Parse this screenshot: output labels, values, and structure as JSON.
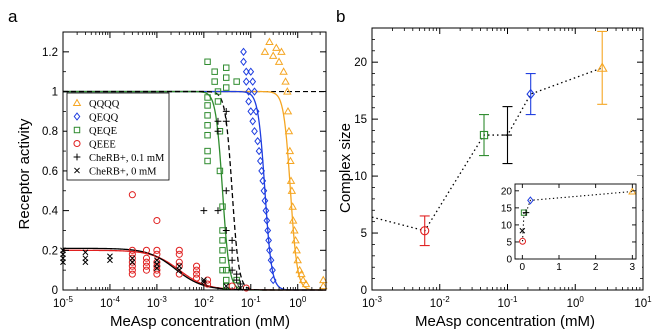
{
  "panels": {
    "a": {
      "letter": "a",
      "ylabel": "Receptor activity",
      "xlabel": "MeAsp concentration (mM)"
    },
    "b": {
      "letter": "b",
      "ylabel": "Complex size",
      "xlabel": "MeAsp concentration (mM)"
    }
  },
  "chart_data": [
    {
      "type": "scatter",
      "panel": "a",
      "xscale": "log",
      "xlim": [
        1e-05,
        4
      ],
      "ylim": [
        0,
        1.3
      ],
      "xticks": [
        1e-05,
        0.0001,
        0.001,
        0.01,
        0.1,
        1
      ],
      "xtick_labels": [
        {
          "base": "10",
          "exp": "-5"
        },
        {
          "base": "10",
          "exp": "-4"
        },
        {
          "base": "10",
          "exp": "-3"
        },
        {
          "base": "10",
          "exp": "-2"
        },
        {
          "base": "10",
          "exp": "-1"
        },
        {
          "base": "10",
          "exp": "0"
        }
      ],
      "yticks": [
        0,
        0.2,
        0.4,
        0.6,
        0.8,
        1,
        1.2
      ],
      "ytick_labels": [
        "0",
        "0.2",
        "0.4",
        "0.6",
        "0.8",
        "1",
        "1.2"
      ],
      "legend_position": "center-left",
      "reference_line": {
        "y": 1,
        "style": "dashed",
        "color": "#000000"
      },
      "series": [
        {
          "name": "QQQQ",
          "marker": "triangle",
          "color": "#f5a623",
          "curve": {
            "top": 1.0,
            "bottom": 0,
            "k": 0.7,
            "n": 6
          },
          "points": [
            [
              0.2,
              1.2
            ],
            [
              0.25,
              1.25
            ],
            [
              0.3,
              1.18
            ],
            [
              0.35,
              1.22
            ],
            [
              0.4,
              1.15
            ],
            [
              0.45,
              1.2
            ],
            [
              0.5,
              1.1
            ],
            [
              0.55,
              1.05
            ],
            [
              0.6,
              1.0
            ],
            [
              0.62,
              0.9
            ],
            [
              0.65,
              0.8
            ],
            [
              0.68,
              0.7
            ],
            [
              0.7,
              0.65
            ],
            [
              0.72,
              0.55
            ],
            [
              0.75,
              0.5
            ],
            [
              0.78,
              0.42
            ],
            [
              0.8,
              0.35
            ],
            [
              0.85,
              0.3
            ],
            [
              0.9,
              0.25
            ],
            [
              0.95,
              0.2
            ],
            [
              1.0,
              0.15
            ],
            [
              1.1,
              0.1
            ],
            [
              1.2,
              0.08
            ],
            [
              1.3,
              0.05
            ],
            [
              1.5,
              0.03
            ],
            [
              3.5,
              0.05
            ],
            [
              3.5,
              0.02
            ]
          ]
        },
        {
          "name": "QEQQ",
          "marker": "diamond",
          "color": "#1f3ee0",
          "curve": {
            "top": 1.0,
            "bottom": 0,
            "k": 0.2,
            "n": 6
          },
          "points": [
            [
              0.07,
              1.2
            ],
            [
              0.07,
              1.15
            ],
            [
              0.08,
              1.1
            ],
            [
              0.08,
              1.05
            ],
            [
              0.09,
              1.0
            ],
            [
              0.09,
              0.95
            ],
            [
              0.1,
              1.1
            ],
            [
              0.1,
              0.9
            ],
            [
              0.11,
              1.05
            ],
            [
              0.11,
              0.85
            ],
            [
              0.12,
              1.0
            ],
            [
              0.12,
              0.8
            ],
            [
              0.13,
              0.9
            ],
            [
              0.14,
              0.75
            ],
            [
              0.15,
              0.7
            ],
            [
              0.16,
              0.65
            ],
            [
              0.17,
              0.6
            ],
            [
              0.18,
              0.55
            ],
            [
              0.19,
              0.5
            ],
            [
              0.2,
              0.45
            ],
            [
              0.21,
              0.4
            ],
            [
              0.22,
              0.35
            ],
            [
              0.23,
              0.3
            ],
            [
              0.24,
              0.25
            ],
            [
              0.25,
              0.2
            ],
            [
              0.27,
              0.15
            ],
            [
              0.29,
              0.1
            ],
            [
              0.3,
              0.05
            ]
          ]
        },
        {
          "name": "QEQE",
          "marker": "square",
          "color": "#2e8b2e",
          "curve": {
            "top": 1.0,
            "bottom": 0,
            "k": 0.025,
            "n": 6
          },
          "points": [
            [
              0.012,
              1.15
            ],
            [
              0.012,
              0.97
            ],
            [
              0.012,
              0.93
            ],
            [
              0.012,
              0.88
            ],
            [
              0.012,
              0.83
            ],
            [
              0.012,
              0.78
            ],
            [
              0.012,
              0.7
            ],
            [
              0.012,
              0.65
            ],
            [
              0.017,
              1.1
            ],
            [
              0.017,
              1.05
            ],
            [
              0.02,
              1.0
            ],
            [
              0.02,
              0.95
            ],
            [
              0.022,
              0.8
            ],
            [
              0.022,
              0.6
            ],
            [
              0.025,
              0.42
            ],
            [
              0.025,
              0.3
            ],
            [
              0.025,
              0.25
            ],
            [
              0.025,
              0.2
            ],
            [
              0.025,
              0.15
            ],
            [
              0.025,
              0.1
            ],
            [
              0.03,
              1.12
            ],
            [
              0.03,
              1.07
            ],
            [
              0.03,
              1.02
            ],
            [
              0.03,
              0.1
            ],
            [
              0.03,
              0.05
            ],
            [
              0.03,
              0.02
            ],
            [
              0.05,
              1.05
            ],
            [
              0.05,
              0.05
            ]
          ]
        },
        {
          "name": "QEEE",
          "marker": "circle",
          "color": "#e02020",
          "curve": {
            "top": 0.2,
            "bottom": 0,
            "k": 0.003,
            "n": 1.5
          },
          "points": [
            [
              0.0003,
              0.48
            ],
            [
              0.0003,
              0.2
            ],
            [
              0.0003,
              0.18
            ],
            [
              0.0003,
              0.16
            ],
            [
              0.0003,
              0.14
            ],
            [
              0.0003,
              0.12
            ],
            [
              0.0003,
              0.1
            ],
            [
              0.0003,
              0.08
            ],
            [
              0.0006,
              0.2
            ],
            [
              0.0006,
              0.16
            ],
            [
              0.0006,
              0.14
            ],
            [
              0.0006,
              0.12
            ],
            [
              0.0006,
              0.1
            ],
            [
              0.001,
              0.35
            ],
            [
              0.001,
              0.2
            ],
            [
              0.001,
              0.18
            ],
            [
              0.001,
              0.14
            ],
            [
              0.001,
              0.12
            ],
            [
              0.001,
              0.1
            ],
            [
              0.001,
              0.08
            ],
            [
              0.003,
              0.2
            ],
            [
              0.003,
              0.18
            ],
            [
              0.003,
              0.14
            ],
            [
              0.003,
              0.12
            ],
            [
              0.003,
              0.08
            ],
            [
              0.007,
              0.12
            ],
            [
              0.007,
              0.1
            ],
            [
              0.007,
              0.08
            ],
            [
              0.007,
              0.06
            ],
            [
              0.012,
              0.05
            ],
            [
              0.012,
              0.03
            ],
            [
              0.04,
              0.02
            ],
            [
              0.08,
              0.01
            ]
          ]
        },
        {
          "name": "CheRB+, 0.1 mM",
          "marker": "plus",
          "color": "#000000",
          "curve": {
            "top": 1.0,
            "bottom": 0,
            "k": 0.04,
            "n": 6
          },
          "points": [
            [
              0.01,
              0.4
            ],
            [
              0.02,
              0.85
            ],
            [
              0.02,
              0.8
            ],
            [
              0.02,
              0.4
            ],
            [
              0.03,
              0.9
            ],
            [
              0.03,
              0.85
            ],
            [
              0.03,
              0.5
            ],
            [
              0.03,
              0.3
            ],
            [
              0.04,
              0.25
            ],
            [
              0.04,
              0.2
            ],
            [
              0.04,
              0.15
            ],
            [
              0.04,
              0.1
            ],
            [
              0.05,
              0.08
            ],
            [
              0.05,
              0.05
            ],
            [
              0.06,
              0.03
            ]
          ]
        },
        {
          "name": "CheRB+, 0 mM",
          "marker": "cross",
          "color": "#000000",
          "curve": {
            "top": 0.21,
            "bottom": 0,
            "k": 0.0025,
            "n": 1.5
          },
          "points": [
            [
              1e-05,
              0.2
            ],
            [
              1e-05,
              0.18
            ],
            [
              1e-05,
              0.16
            ],
            [
              1e-05,
              0.14
            ],
            [
              3e-05,
              0.19
            ],
            [
              3e-05,
              0.16
            ],
            [
              3e-05,
              0.14
            ],
            [
              0.0001,
              0.17
            ],
            [
              0.0001,
              0.15
            ],
            [
              0.0003,
              0.16
            ],
            [
              0.0003,
              0.14
            ],
            [
              0.001,
              0.15
            ],
            [
              0.001,
              0.13
            ],
            [
              0.001,
              0.11
            ],
            [
              0.003,
              0.12
            ],
            [
              0.003,
              0.1
            ],
            [
              0.01,
              0.05
            ],
            [
              0.01,
              0.04
            ],
            [
              0.03,
              0.02
            ],
            [
              0.06,
              0.01
            ]
          ]
        }
      ]
    },
    {
      "type": "scatter",
      "panel": "b",
      "xscale": "log",
      "xlim": [
        0.001,
        10
      ],
      "ylim": [
        0,
        23
      ],
      "xticks": [
        0.001,
        0.01,
        0.1,
        1,
        10
      ],
      "xtick_labels": [
        {
          "base": "10",
          "exp": "-3"
        },
        {
          "base": "10",
          "exp": "-2"
        },
        {
          "base": "10",
          "exp": "-1"
        },
        {
          "base": "10",
          "exp": "0"
        },
        {
          "base": "10",
          "exp": "1"
        }
      ],
      "yticks": [
        0,
        5,
        10,
        15,
        20
      ],
      "ytick_labels": [
        "0",
        "5",
        "10",
        "15",
        "20"
      ],
      "guide_line": {
        "style": "dotted",
        "color": "#000000",
        "points": [
          [
            0.001,
            6.4
          ],
          [
            0.006,
            5.2
          ],
          [
            0.045,
            13.6
          ],
          [
            0.1,
            13.6
          ],
          [
            0.22,
            17.2
          ],
          [
            2.5,
            19.5
          ]
        ]
      },
      "points": [
        {
          "x": 0.006,
          "y": 5.2,
          "err": 1.3,
          "marker": "circle",
          "color": "#e02020"
        },
        {
          "x": 0.045,
          "y": 13.6,
          "err": 1.8,
          "marker": "square",
          "color": "#2e8b2e"
        },
        {
          "x": 0.1,
          "y": 13.6,
          "err": 2.5,
          "marker": "plus",
          "color": "#000000"
        },
        {
          "x": 0.22,
          "y": 17.2,
          "err": 1.8,
          "marker": "diamond",
          "color": "#1f3ee0"
        },
        {
          "x": 2.5,
          "y": 19.5,
          "err": 3.2,
          "marker": "triangle",
          "color": "#f5a623"
        }
      ],
      "inset": {
        "xscale": "linear",
        "xlim": [
          -0.2,
          3.1
        ],
        "ylim": [
          0,
          22
        ],
        "xticks": [
          0,
          1,
          2,
          3
        ],
        "xtick_labels": [
          "0",
          "1",
          "2",
          "3"
        ],
        "yticks": [
          0,
          5,
          10,
          15,
          20
        ],
        "ytick_labels": [
          "0",
          "5",
          "10",
          "15",
          "20"
        ],
        "guide_line": [
          [
            0.006,
            5.2
          ],
          [
            0.045,
            13.6
          ],
          [
            0.1,
            13.6
          ],
          [
            0.22,
            17.2
          ],
          [
            3.0,
            19.8
          ]
        ],
        "points": [
          {
            "x": 0.0,
            "y": 8.3,
            "marker": "cross",
            "color": "#000000"
          },
          {
            "x": 0.006,
            "y": 5.2,
            "marker": "circle",
            "color": "#e02020"
          },
          {
            "x": 0.045,
            "y": 13.6,
            "marker": "square",
            "color": "#2e8b2e"
          },
          {
            "x": 0.1,
            "y": 13.6,
            "marker": "plus",
            "color": "#000000"
          },
          {
            "x": 0.22,
            "y": 17.2,
            "marker": "diamond",
            "color": "#1f3ee0"
          },
          {
            "x": 3.0,
            "y": 19.8,
            "marker": "triangle",
            "color": "#f5a623"
          }
        ]
      }
    }
  ]
}
